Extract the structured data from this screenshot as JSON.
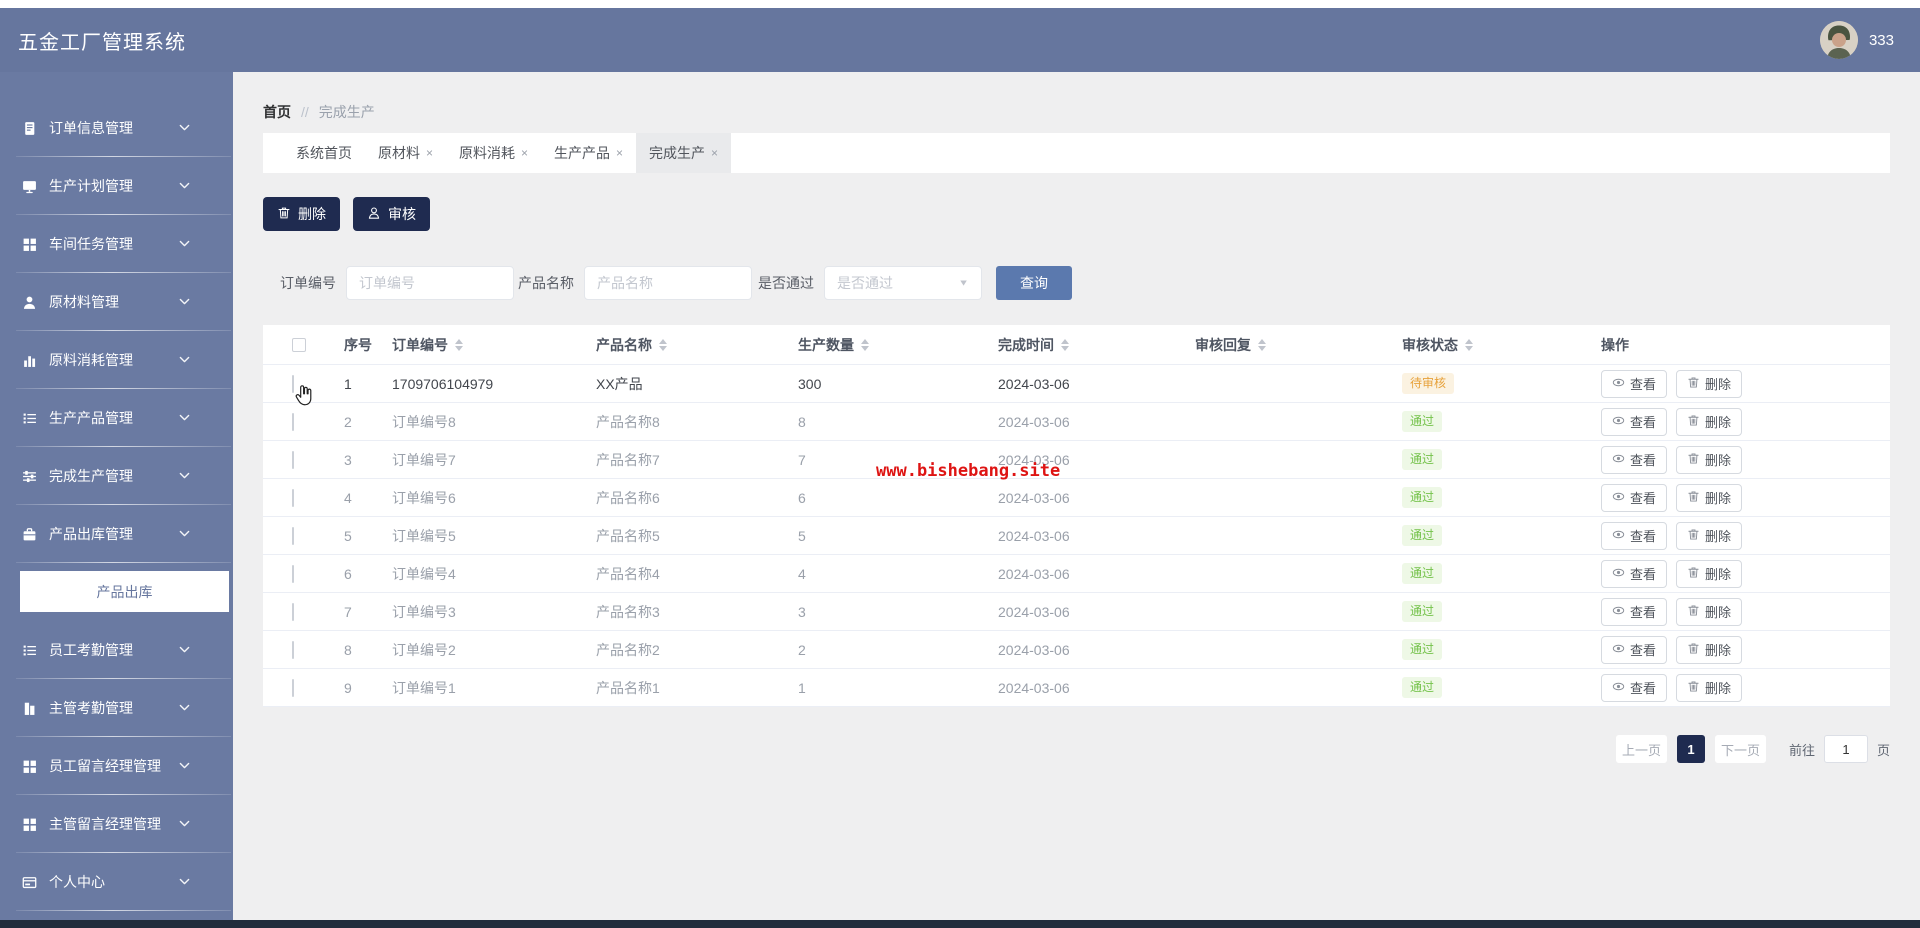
{
  "header": {
    "title": "五金工厂管理系统",
    "username": "333"
  },
  "breadcrumb": {
    "home": "首页",
    "separator": "//",
    "current": "完成生产"
  },
  "tabs": [
    {
      "label": "系统首页",
      "closable": false,
      "active": false
    },
    {
      "label": "原材料",
      "closable": true,
      "active": false
    },
    {
      "label": "原料消耗",
      "closable": true,
      "active": false
    },
    {
      "label": "生产产品",
      "closable": true,
      "active": false
    },
    {
      "label": "完成生产",
      "closable": true,
      "active": true
    }
  ],
  "sidebar": {
    "items": [
      {
        "label": "订单信息管理",
        "icon": "document-icon"
      },
      {
        "label": "生产计划管理",
        "icon": "monitor-icon"
      },
      {
        "label": "车间任务管理",
        "icon": "grid-icon"
      },
      {
        "label": "原材料管理",
        "icon": "user-icon"
      },
      {
        "label": "原料消耗管理",
        "icon": "bar-chart-icon"
      },
      {
        "label": "生产产品管理",
        "icon": "list-icon"
      },
      {
        "label": "完成生产管理",
        "icon": "sliders-icon"
      },
      {
        "label": "产品出库管理",
        "icon": "briefcase-icon",
        "expanded": true,
        "children": [
          {
            "label": "产品出库",
            "active": true
          }
        ]
      },
      {
        "label": "员工考勤管理",
        "icon": "list-icon"
      },
      {
        "label": "主管考勤管理",
        "icon": "building-icon"
      },
      {
        "label": "员工留言经理管理",
        "icon": "grid-icon"
      },
      {
        "label": "主管留言经理管理",
        "icon": "grid-icon"
      },
      {
        "label": "个人中心",
        "icon": "card-icon"
      }
    ]
  },
  "toolbar": {
    "delete_label": "删除",
    "audit_label": "审核"
  },
  "filters": {
    "order_no": {
      "label": "订单编号",
      "placeholder": "订单编号"
    },
    "product_name": {
      "label": "产品名称",
      "placeholder": "产品名称"
    },
    "pass": {
      "label": "是否通过",
      "placeholder": "是否通过"
    },
    "search_label": "查询"
  },
  "table": {
    "columns": [
      {
        "label": "序号",
        "sortable": false
      },
      {
        "label": "订单编号",
        "sortable": true
      },
      {
        "label": "产品名称",
        "sortable": true
      },
      {
        "label": "生产数量",
        "sortable": true
      },
      {
        "label": "完成时间",
        "sortable": true
      },
      {
        "label": "审核回复",
        "sortable": true
      },
      {
        "label": "审核状态",
        "sortable": true
      },
      {
        "label": "操作",
        "sortable": false
      }
    ],
    "view_label": "查看",
    "delete_label": "删除",
    "rows": [
      {
        "index": "1",
        "order_no": "1709706104979",
        "product": "XX产品",
        "qty": "300",
        "time": "2024-03-06",
        "reply": "",
        "status": "待审核",
        "status_type": "warning"
      },
      {
        "index": "2",
        "order_no": "订单编号8",
        "product": "产品名称8",
        "qty": "8",
        "time": "2024-03-06",
        "reply": "",
        "status": "通过",
        "status_type": "success"
      },
      {
        "index": "3",
        "order_no": "订单编号7",
        "product": "产品名称7",
        "qty": "7",
        "time": "2024-03-06",
        "reply": "",
        "status": "通过",
        "status_type": "success"
      },
      {
        "index": "4",
        "order_no": "订单编号6",
        "product": "产品名称6",
        "qty": "6",
        "time": "2024-03-06",
        "reply": "",
        "status": "通过",
        "status_type": "success"
      },
      {
        "index": "5",
        "order_no": "订单编号5",
        "product": "产品名称5",
        "qty": "5",
        "time": "2024-03-06",
        "reply": "",
        "status": "通过",
        "status_type": "success"
      },
      {
        "index": "6",
        "order_no": "订单编号4",
        "product": "产品名称4",
        "qty": "4",
        "time": "2024-03-06",
        "reply": "",
        "status": "通过",
        "status_type": "success"
      },
      {
        "index": "7",
        "order_no": "订单编号3",
        "product": "产品名称3",
        "qty": "3",
        "time": "2024-03-06",
        "reply": "",
        "status": "通过",
        "status_type": "success"
      },
      {
        "index": "8",
        "order_no": "订单编号2",
        "product": "产品名称2",
        "qty": "2",
        "time": "2024-03-06",
        "reply": "",
        "status": "通过",
        "status_type": "success"
      },
      {
        "index": "9",
        "order_no": "订单编号1",
        "product": "产品名称1",
        "qty": "1",
        "time": "2024-03-06",
        "reply": "",
        "status": "通过",
        "status_type": "success"
      }
    ]
  },
  "pagination": {
    "prev": "上一页",
    "page": "1",
    "next": "下一页",
    "goto_prefix": "前往",
    "goto_value": "1",
    "goto_suffix": "页"
  },
  "watermark": "www.bishebang.site",
  "colors": {
    "header_bg": "#66769e",
    "sidebar_bg": "#6a7aa2",
    "dark_button": "#1f2b50",
    "search_button": "#5b79ae",
    "warning_text": "#e7a23c",
    "warning_bg": "#fbf2e1",
    "success_text": "#74c24a",
    "success_bg": "#eef8e6",
    "watermark_red": "#de1413"
  }
}
